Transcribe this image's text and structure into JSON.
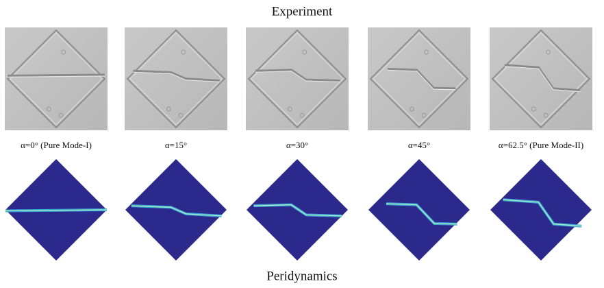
{
  "top_title": "Experiment",
  "bottom_title": "Peridynamics",
  "panels": [
    {
      "label": "α=0° (Pure Mode-I)"
    },
    {
      "label": "α=15°"
    },
    {
      "label": "α=30°"
    },
    {
      "label": "α=45°"
    },
    {
      "label": "α=62.5° (Pure Mode-II)"
    }
  ]
}
